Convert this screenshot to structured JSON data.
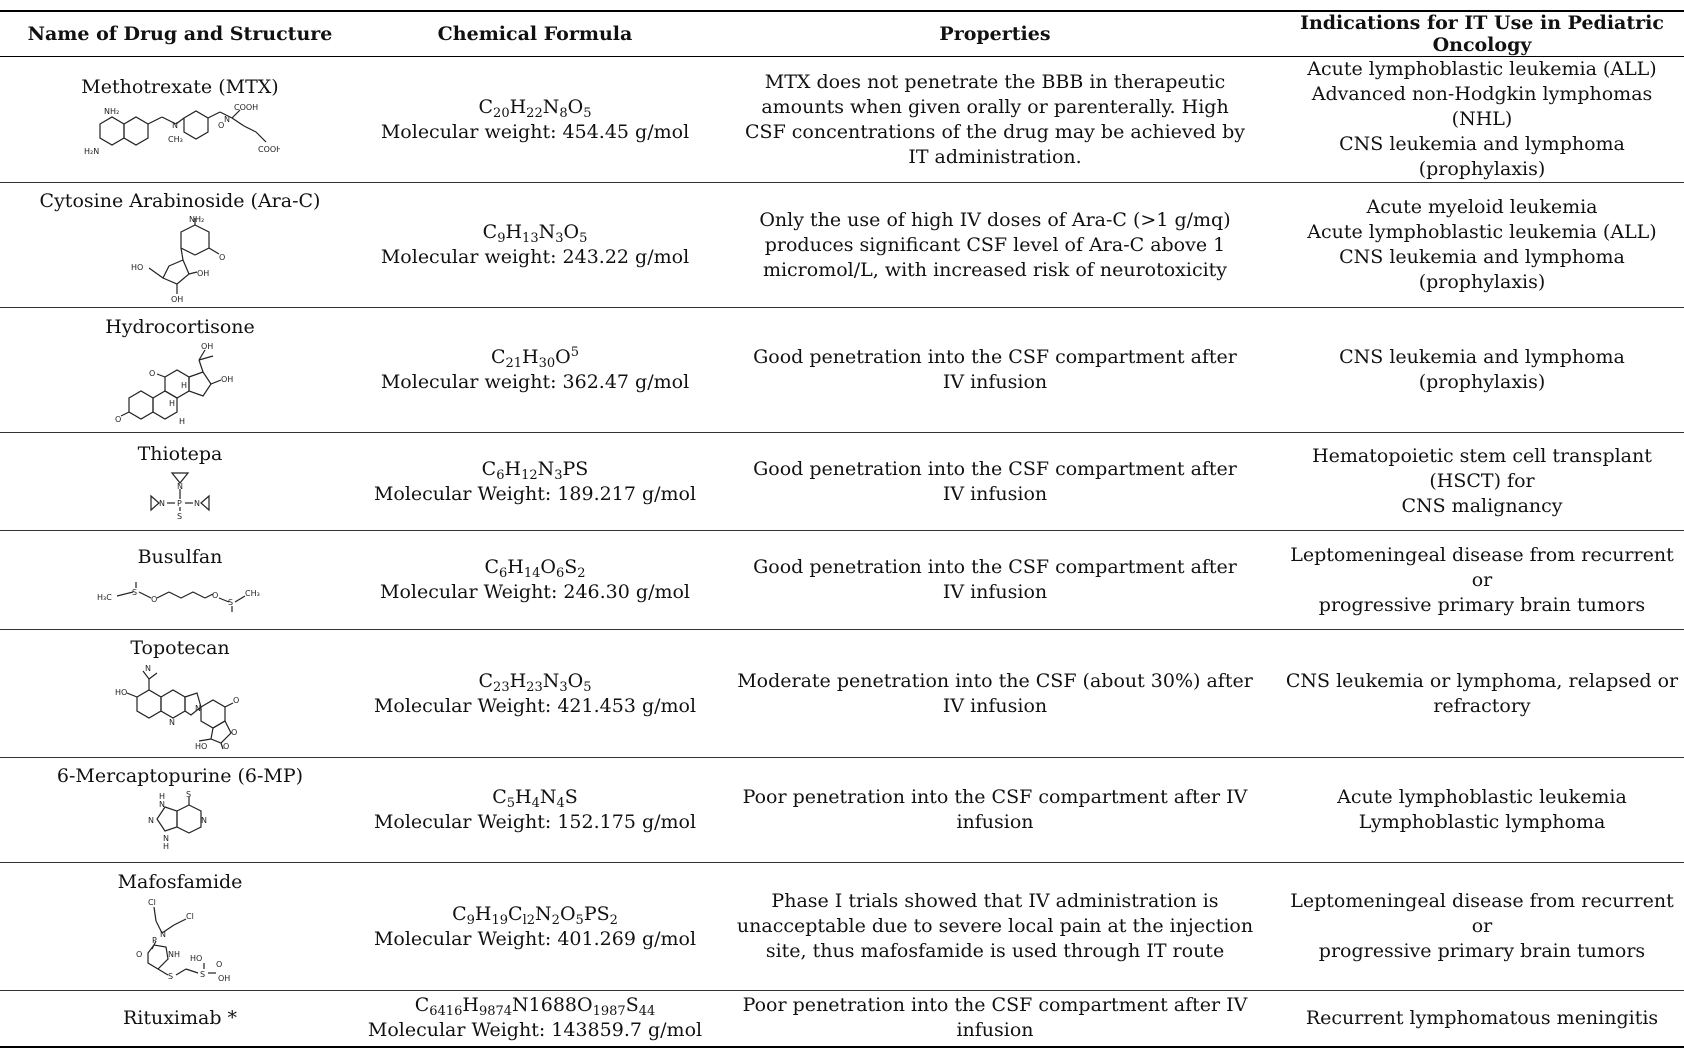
{
  "table": {
    "headers": [
      "Name of Drug and Structure",
      "Chemical Formula",
      "Properties",
      "Indications for IT Use in Pediatric Oncology"
    ],
    "rows": [
      {
        "name": "Methotrexate (MTX)",
        "structure_labels": [
          "NH₂",
          "H₂N",
          "N",
          "CH₃",
          "O",
          "N",
          "COOH",
          "COOH"
        ],
        "formula": [
          [
            "C",
            "20"
          ],
          [
            "H",
            "22"
          ],
          [
            "N",
            "8"
          ],
          [
            "O",
            "5"
          ]
        ],
        "mw": "Molecular weight: 454.45 g/mol",
        "properties": [
          "MTX does not penetrate the BBB in therapeutic",
          "amounts when given orally or parenterally.  High",
          "CSF concentrations of the drug may be achieved by",
          "IT administration."
        ],
        "indications": [
          "Acute lymphoblastic leukemia (ALL)",
          "Advanced non-Hodgkin lymphomas (NHL)",
          "CNS leukemia and lymphoma (prophylaxis)"
        ]
      },
      {
        "name": "Cytosine Arabinoside (Ara-C)",
        "structure_labels": [
          "NH₂",
          "HO",
          "OH",
          "OH",
          "O"
        ],
        "formula": [
          [
            "C",
            "9"
          ],
          [
            "H",
            "13"
          ],
          [
            "N",
            "3"
          ],
          [
            "O",
            "5"
          ]
        ],
        "mw": "Molecular weight: 243.22 g/mol",
        "properties": [
          "Only the use of high IV doses of Ara-C (>1 g/mq)",
          "produces significant CSF level of Ara-C above 1",
          "micromol/L, with increased risk of neurotoxicity"
        ],
        "indications": [
          "Acute myeloid leukemia",
          "Acute lymphoblastic leukemia (ALL)",
          "CNS leukemia and lymphoma (prophylaxis)"
        ]
      },
      {
        "name": "Hydrocortisone",
        "structure_labels": [
          "OH",
          "OH",
          "O",
          "O",
          "H",
          "H",
          "H"
        ],
        "formula_sup": {
          "C": "21",
          "H": "30",
          "O": "O",
          "sup": "5"
        },
        "mw": "Molecular weight: 362.47 g/mol",
        "properties": [
          "Good penetration into the CSF compartment after",
          "IV infusion"
        ],
        "indications": [
          "CNS leukemia and lymphoma (prophylaxis)"
        ]
      },
      {
        "name": "Thiotepa",
        "structure_labels": [
          "N",
          "N",
          "P",
          "N",
          "S"
        ],
        "formula": [
          [
            "C",
            "6"
          ],
          [
            "H",
            "12"
          ],
          [
            "N",
            "3"
          ],
          [
            "PS",
            ""
          ]
        ],
        "mw": "Molecular Weight: 189.217 g/mol",
        "properties": [
          "Good penetration into the CSF compartment after",
          "IV infusion"
        ],
        "indications": [
          "Hematopoietic stem cell transplant (HSCT) for",
          "CNS malignancy"
        ]
      },
      {
        "name": "Busulfan",
        "structure_labels": [
          "H₃C",
          "S",
          "O",
          "O",
          "S",
          "CH₃"
        ],
        "formula": [
          [
            "C",
            "6"
          ],
          [
            "H",
            "14"
          ],
          [
            "O",
            "6"
          ],
          [
            "S",
            "2"
          ]
        ],
        "mw": "Molecular Weight: 246.30 g/mol",
        "properties": [
          "Good penetration into the CSF compartment after",
          "IV infusion"
        ],
        "indications": [
          "Leptomeningeal disease from recurrent or",
          "progressive primary brain tumors"
        ]
      },
      {
        "name": "Topotecan",
        "structure_labels": [
          "N",
          "HO",
          "N",
          "N",
          "O",
          "O",
          "HO",
          "O"
        ],
        "formula": [
          [
            "C",
            "23"
          ],
          [
            "H",
            "23"
          ],
          [
            "N",
            "3"
          ],
          [
            "O",
            "5"
          ]
        ],
        "mw": "Molecular Weight: 421.453 g/mol",
        "properties": [
          "Moderate penetration into the CSF (about 30%) after",
          "IV infusion"
        ],
        "indications": [
          "CNS leukemia or lymphoma, relapsed or",
          "refractory"
        ]
      },
      {
        "name": "6-Mercaptopurine (6-MP)",
        "structure_labels": [
          "S",
          "H",
          "N",
          "N",
          "N",
          "N",
          "H"
        ],
        "formula": [
          [
            "C",
            "5"
          ],
          [
            "H",
            "4"
          ],
          [
            "N",
            "4"
          ],
          [
            "S",
            ""
          ]
        ],
        "mw": "Molecular Weight: 152.175 g/mol",
        "properties": [
          "Poor penetration into the CSF compartment after IV",
          "infusion"
        ],
        "indications": [
          "Acute lymphoblastic leukemia",
          "Lymphoblastic lymphoma"
        ]
      },
      {
        "name": "Mafosfamide",
        "structure_labels": [
          "Cl",
          "Cl",
          "O",
          "P",
          "N",
          "NH",
          "S",
          "HO",
          "S",
          "O",
          "OH"
        ],
        "formula": [
          [
            "C",
            "9"
          ],
          [
            "H",
            "19"
          ],
          [
            "C",
            ""
          ],
          [
            "l",
            "2"
          ],
          [
            "N",
            "2"
          ],
          [
            "O",
            "5"
          ],
          [
            "PS",
            "2"
          ]
        ],
        "mw": "Molecular Weight: 401.269 g/mol",
        "properties": [
          "Phase I trials showed that IV administration is",
          "unacceptable due to severe local pain at the injection",
          "site, thus mafosfamide is used through IT route"
        ],
        "indications": [
          "Leptomeningeal disease from recurrent or",
          "progressive primary brain tumors"
        ]
      },
      {
        "name": "Rituximab *",
        "formula": [
          [
            "C",
            "6416"
          ],
          [
            "H",
            "9874"
          ],
          [
            "N1688O",
            "1987"
          ],
          [
            "S",
            "44"
          ]
        ],
        "mw": "Molecular Weight: 143859.7 g/mol",
        "properties": [
          "Poor penetration into the CSF compartment after IV",
          "infusion"
        ],
        "indications": [
          "Recurrent lymphomatous meningitis"
        ]
      }
    ]
  }
}
